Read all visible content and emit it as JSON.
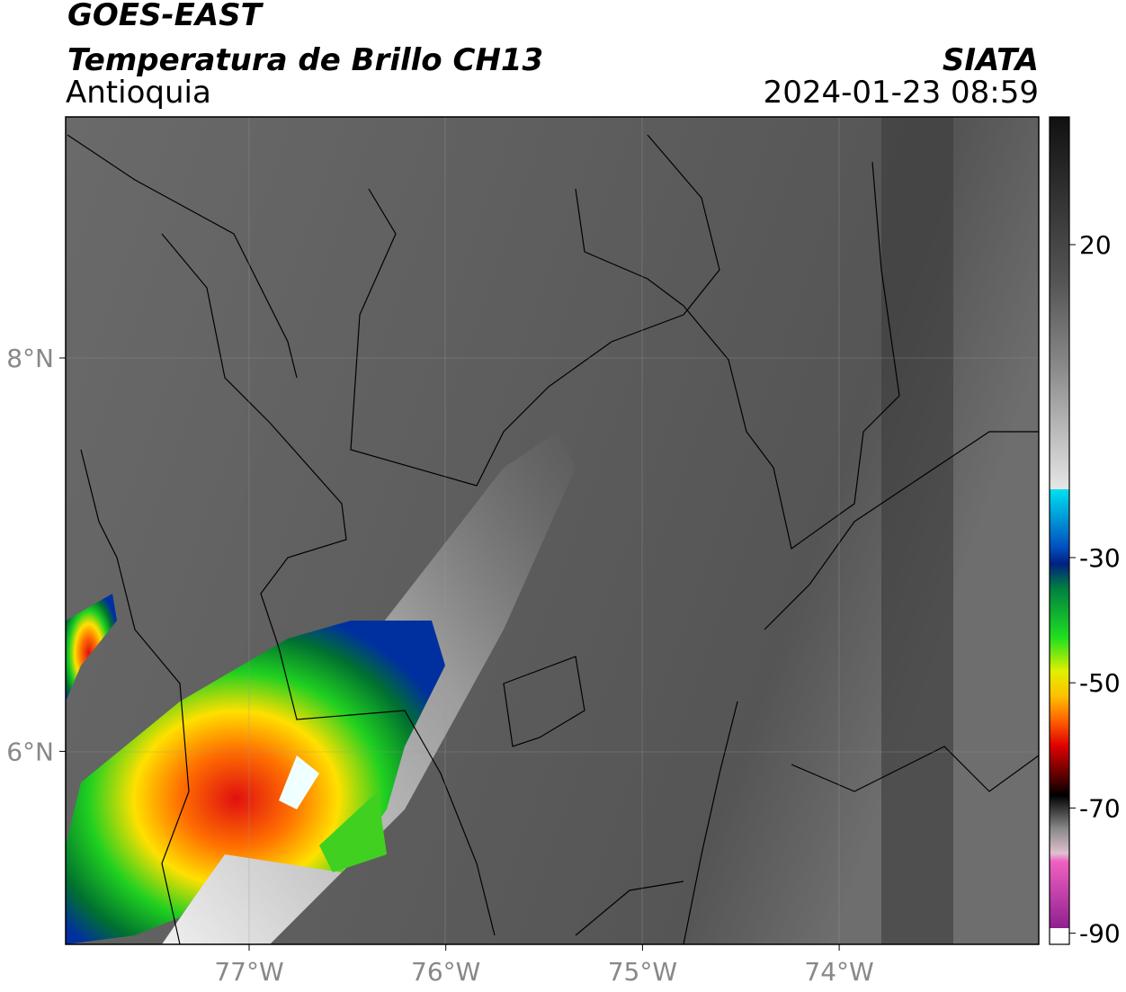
{
  "header": {
    "title": "GOES-EAST",
    "subtitle": "Temperatura de Brillo CH13",
    "region": "Antioquia",
    "agency": "SIATA",
    "datetime": "2024-01-23 08:59"
  },
  "map": {
    "lat_labels": [
      "8°N",
      "6°N"
    ],
    "lon_labels": [
      "77°W",
      "76°W",
      "75°W",
      "74°W"
    ]
  },
  "colorbar": {
    "ticks": [
      20,
      -30,
      -50,
      -70,
      -90
    ]
  }
}
